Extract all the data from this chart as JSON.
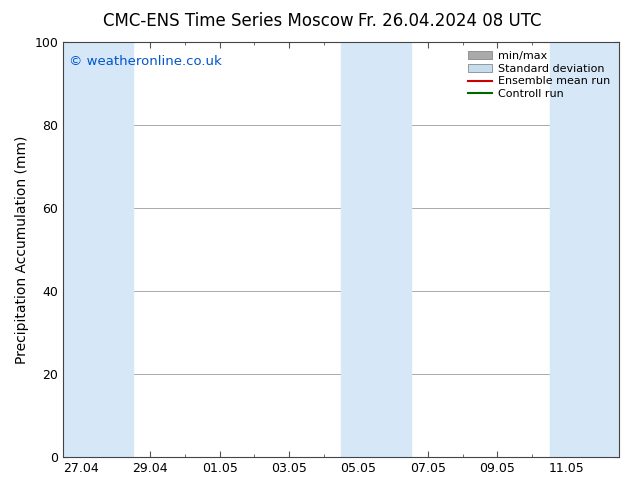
{
  "title": "CMC-ENS Time Series Moscow",
  "title_right": "Fr. 26.04.2024 08 UTC",
  "ylabel": "Precipitation Accumulation (mm)",
  "watermark": "© weatheronline.co.uk",
  "ylim": [
    0,
    100
  ],
  "yticks": [
    0,
    20,
    40,
    60,
    80,
    100
  ],
  "x_tick_labels": [
    "27.04",
    "29.04",
    "01.05",
    "03.05",
    "05.05",
    "07.05",
    "09.05",
    "11.05"
  ],
  "x_tick_positions": [
    0,
    2,
    4,
    6,
    8,
    10,
    12,
    14
  ],
  "background_color": "#ffffff",
  "plot_bg_color": "#ffffff",
  "shaded_bands": [
    {
      "x_start": -0.5,
      "x_end": 1.5,
      "color": "#d6e8f7"
    },
    {
      "x_start": 7.5,
      "x_end": 9.5,
      "color": "#d6e8f7"
    },
    {
      "x_start": 13.5,
      "x_end": 15.5,
      "color": "#d6e8f7"
    }
  ],
  "x_lim": [
    -0.5,
    15.5
  ],
  "legend_items": [
    {
      "label": "min/max",
      "color": "#aaaaaa",
      "linewidth": 8,
      "is_patch": true
    },
    {
      "label": "Standard deviation",
      "color": "#c5dced",
      "linewidth": 8,
      "is_patch": true
    },
    {
      "label": "Ensemble mean run",
      "color": "#cc0000",
      "linewidth": 1.5,
      "is_patch": false
    },
    {
      "label": "Controll run",
      "color": "#006600",
      "linewidth": 1.5,
      "is_patch": false
    }
  ],
  "watermark_color": "#0055cc",
  "title_fontsize": 12,
  "axis_label_fontsize": 10,
  "tick_fontsize": 9,
  "legend_fontsize": 8
}
